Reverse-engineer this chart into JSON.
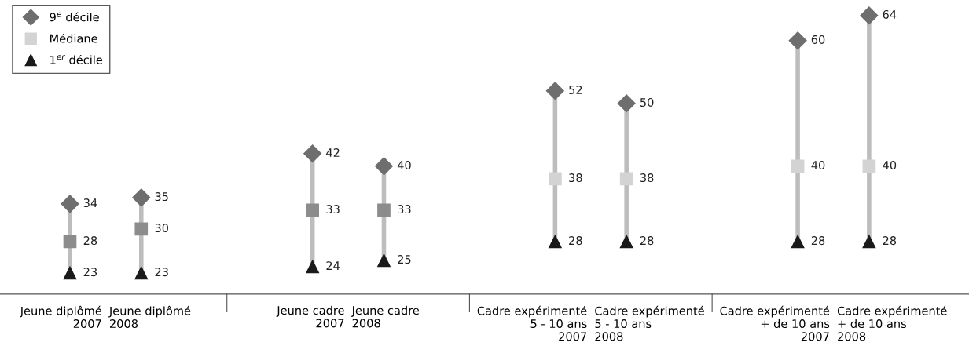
{
  "chart_data": {
    "type": "scatter",
    "categories": [
      "Jeune diplômé\n2007",
      "Jeune diplômé\n2008",
      "Jeune cadre\n2007",
      "Jeune cadre\n2008",
      "Cadre expérimenté\n5 - 10 ans\n2007",
      "Cadre expérimenté\n5 - 10 ans\n2008",
      "Cadre expérimenté\n+ de 10 ans\n2007",
      "Cadre expérimenté\n+ de 10 ans\n2008"
    ],
    "series": [
      {
        "name": "9$^{e}$ décile",
        "color": "#6e6e6e",
        "marker": "diamond",
        "values": [
          34,
          35,
          42,
          40,
          52,
          50,
          60,
          64
        ]
      },
      {
        "name": "Médiane",
        "color": "#d3d3d3",
        "marker": "square",
        "colors": [
          "#8c8c8c",
          "#8c8c8c",
          "#8c8c8c",
          "#8c8c8c",
          "#d3d3d3",
          "#d3d3d3",
          "#d3d3d3",
          "#d3d3d3"
        ],
        "values": [
          28,
          30,
          33,
          33,
          38,
          38,
          40,
          40
        ]
      },
      {
        "name": "1$^{er}$ décile",
        "color": "#1a1a1a",
        "marker": "triangle",
        "values": [
          23,
          23,
          24,
          25,
          28,
          28,
          28,
          28
        ]
      }
    ],
    "data_labels": true,
    "legend": "top left"
  }
}
